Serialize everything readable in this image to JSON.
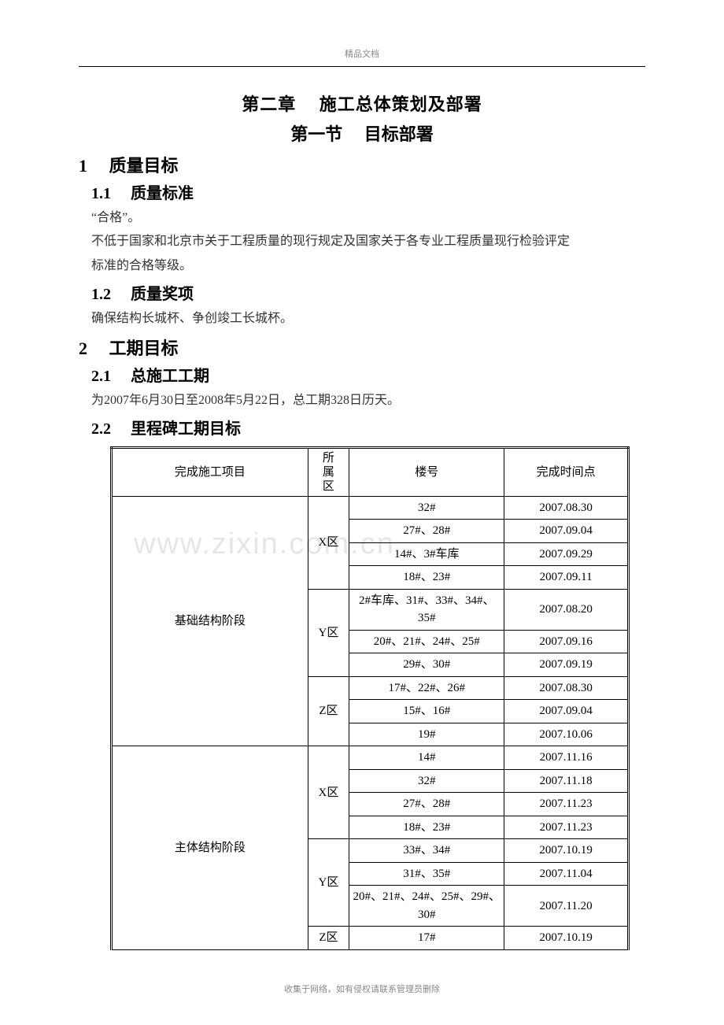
{
  "header": {
    "small_label": "精品文档"
  },
  "watermark": "www.zixin.com.cn",
  "chapter": "第二章　 施工总体策划及部署",
  "section": "第一节　 目标部署",
  "s1": {
    "num_title": "1　 质量目标",
    "s1_1_title": "1.1　 质量标准",
    "s1_1_line1": "“合格”。",
    "s1_1_line2": "不低于国家和北京市关于工程质量的现行规定及国家关于各专业工程质量现行检验评定",
    "s1_1_line3": "标准的合格等级。",
    "s1_2_title": "1.2　 质量奖项",
    "s1_2_line1": "确保结构长城杯、争创竣工长城杯。"
  },
  "s2": {
    "num_title": "2　 工期目标",
    "s2_1_title": "2.1　 总施工工期",
    "s2_1_line1": "为2007年6月30日至2008年5月22日，总工期328日历天。",
    "s2_2_title": "2.2　 里程碑工期目标"
  },
  "table": {
    "columns": {
      "project": "完成施工项目",
      "zone_line1": "所",
      "zone_line2": "属",
      "zone_line3": "区",
      "building": "楼号",
      "date": "完成时间点"
    },
    "phase1": {
      "name": "基础结构阶段",
      "zones": {
        "X": {
          "label": "X区",
          "rows": [
            {
              "bld": "32#",
              "date": "2007.08.30"
            },
            {
              "bld": "27#、28#",
              "date": "2007.09.04"
            },
            {
              "bld": "14#、3#车库",
              "date": "2007.09.29"
            },
            {
              "bld": "18#、23#",
              "date": "2007.09.11"
            }
          ]
        },
        "Y": {
          "label": "Y区",
          "rows": [
            {
              "bld": "2#车库、31#、33#、34#、35#",
              "date": "2007.08.20"
            },
            {
              "bld": "20#、21#、24#、25#",
              "date": "2007.09.16"
            },
            {
              "bld": "29#、30#",
              "date": "2007.09.19"
            }
          ]
        },
        "Z": {
          "label": "Z区",
          "rows": [
            {
              "bld": "17#、22#、26#",
              "date": "2007.08.30"
            },
            {
              "bld": "15#、16#",
              "date": "2007.09.04"
            },
            {
              "bld": "19#",
              "date": "2007.10.06"
            }
          ]
        }
      }
    },
    "phase2": {
      "name": "主体结构阶段",
      "zones": {
        "X": {
          "label": "X区",
          "rows": [
            {
              "bld": "14#",
              "date": "2007.11.16"
            },
            {
              "bld": "32#",
              "date": "2007.11.18"
            },
            {
              "bld": "27#、28#",
              "date": "2007.11.23"
            },
            {
              "bld": "18#、23#",
              "date": "2007.11.23"
            }
          ]
        },
        "Y": {
          "label": "Y区",
          "rows": [
            {
              "bld": "33#、34#",
              "date": "2007.10.19"
            },
            {
              "bld": "31#、35#",
              "date": "2007.11.04"
            },
            {
              "bld": "20#、21#、24#、25#、29#、30#",
              "date": "2007.11.20"
            }
          ]
        },
        "Z": {
          "label": "Z区",
          "rows": [
            {
              "bld": "17#",
              "date": "2007.10.19"
            }
          ]
        }
      }
    }
  },
  "footer": {
    "text": "收集于网络，如有侵权请联系管理员删除"
  }
}
